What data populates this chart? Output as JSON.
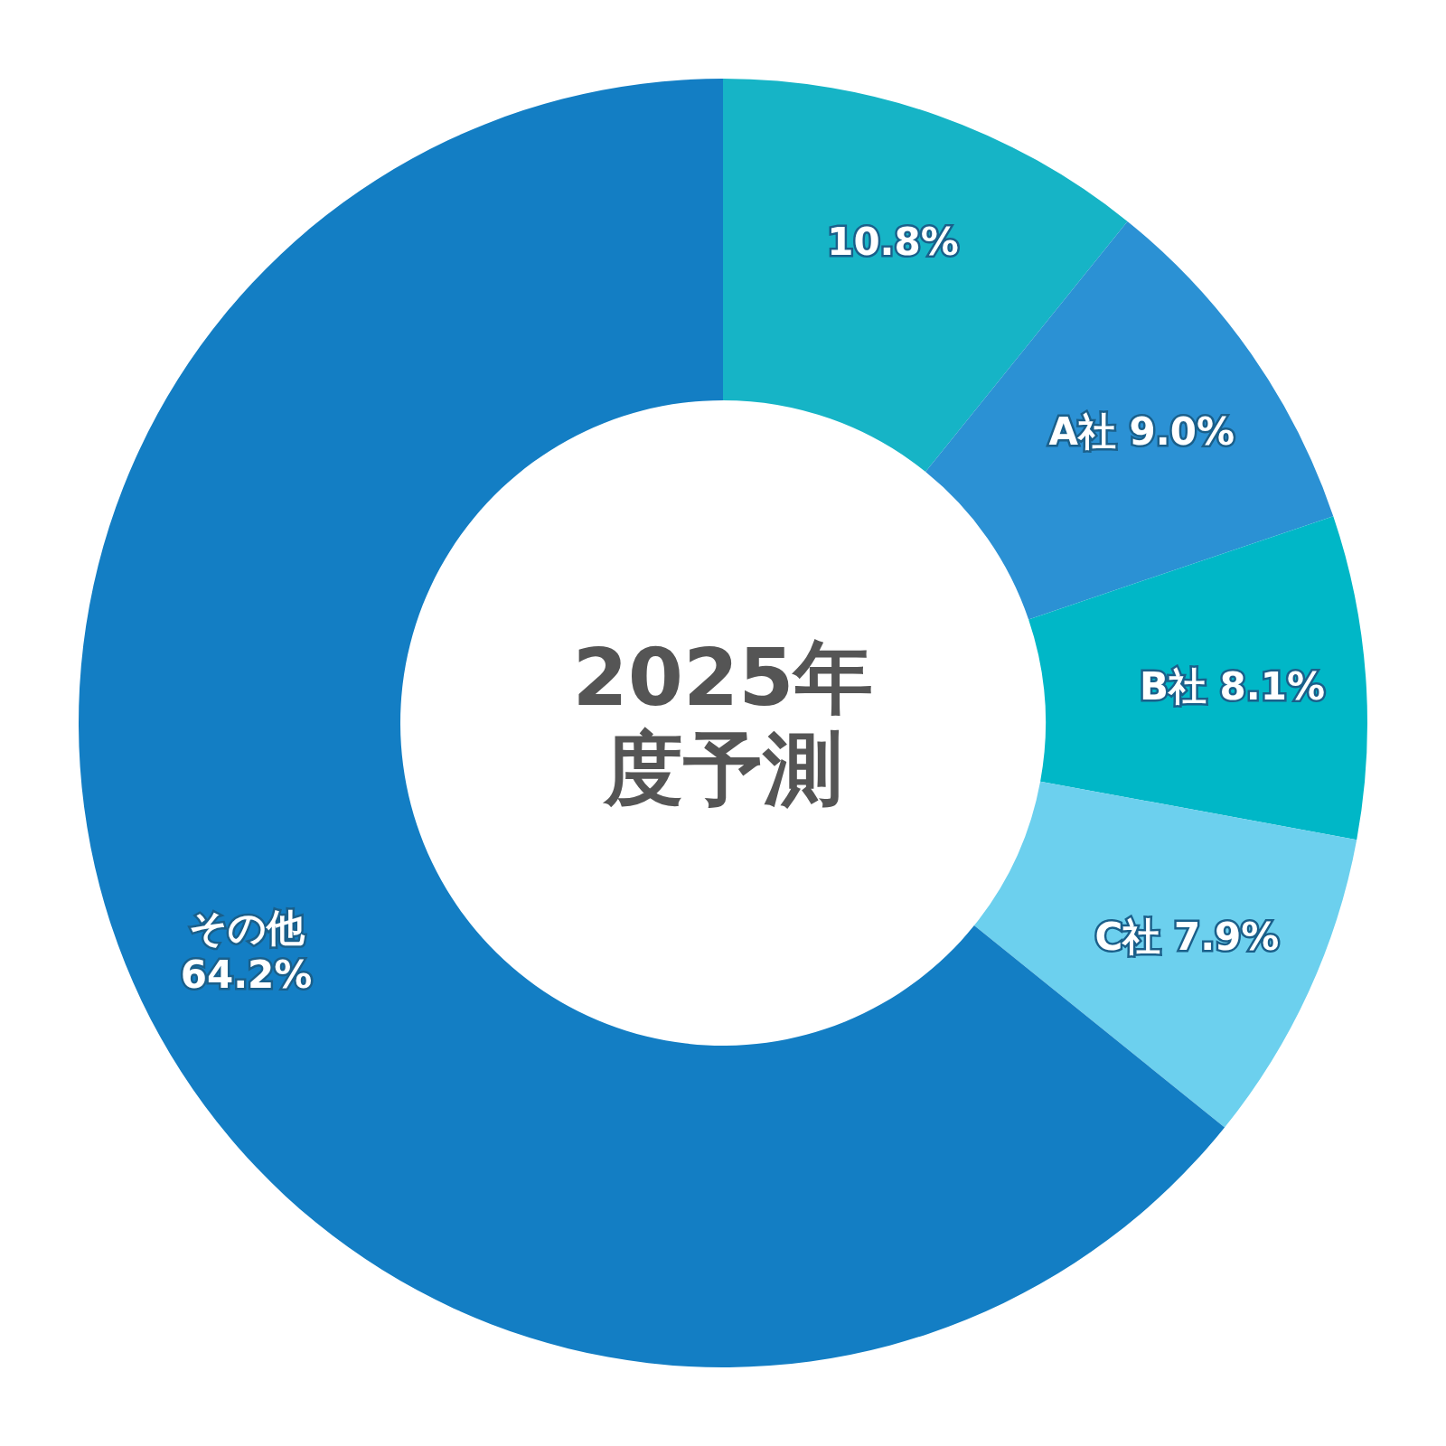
{
  "chart_data": {
    "type": "donut",
    "title": "2025年度予測",
    "categories": [
      null,
      "A社",
      "B社",
      "C社",
      "その他"
    ],
    "values": [
      10.8,
      9.0,
      8.1,
      7.9,
      64.2
    ],
    "value_labels": [
      "10.8%",
      "9.0%",
      "8.1%",
      "7.9%",
      "64.2%"
    ],
    "colors": [
      "#16b4c6",
      "#2b91d4",
      "#00b7c7",
      "#6cd0ee",
      "#137ec4"
    ]
  }
}
